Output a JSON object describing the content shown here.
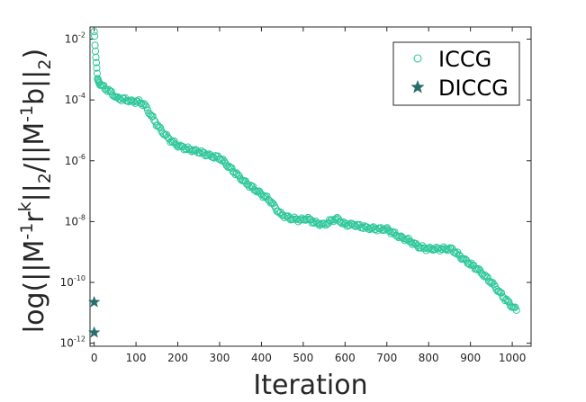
{
  "chart_data": {
    "type": "scatter",
    "xlabel": "Iteration",
    "ylabel": "log(||M⁻¹rᵏ||₂/||M⁻¹b||₂)",
    "ylabel_parts": {
      "pre": "log(||M",
      "sup1": "-1",
      "mid1": "r",
      "sup2": "k",
      "mid2": "||",
      "sub1": "2",
      "mid3": "/||M",
      "sup3": "-1",
      "mid4": "b||",
      "sub2": "2",
      "post": ")"
    },
    "xlim": [
      -10,
      1045
    ],
    "ylim_log10": [
      -12.1,
      -1.6
    ],
    "y_scale": "log",
    "grid": false,
    "legend_position": "top-right",
    "x_ticks": [
      {
        "value": 0,
        "label": "0"
      },
      {
        "value": 100,
        "label": "100"
      },
      {
        "value": 200,
        "label": "200"
      },
      {
        "value": 300,
        "label": "300"
      },
      {
        "value": 400,
        "label": "400"
      },
      {
        "value": 500,
        "label": "500"
      },
      {
        "value": 600,
        "label": "600"
      },
      {
        "value": 700,
        "label": "700"
      },
      {
        "value": 800,
        "label": "800"
      },
      {
        "value": 900,
        "label": "900"
      },
      {
        "value": 1000,
        "label": "1000"
      }
    ],
    "y_ticks": [
      {
        "exponent": -2,
        "base": "10",
        "exp": "-2"
      },
      {
        "exponent": -4,
        "base": "10",
        "exp": "-4"
      },
      {
        "exponent": -6,
        "base": "10",
        "exp": "-6"
      },
      {
        "exponent": -8,
        "base": "10",
        "exp": "-8"
      },
      {
        "exponent": -10,
        "base": "10",
        "exp": "-10"
      },
      {
        "exponent": -12,
        "base": "10",
        "exp": "-12"
      }
    ],
    "series": [
      {
        "name": "ICCG",
        "marker": "circle-open",
        "color": "#2fc79a",
        "x_range": [
          0,
          1010
        ],
        "log10_profile": [
          [
            0,
            -1.75
          ],
          [
            1,
            -1.9
          ],
          [
            2,
            -2.2
          ],
          [
            4,
            -2.6
          ],
          [
            6,
            -2.95
          ],
          [
            8,
            -3.3
          ],
          [
            12,
            -3.45
          ],
          [
            20,
            -3.55
          ],
          [
            40,
            -3.75
          ],
          [
            55,
            -3.95
          ],
          [
            70,
            -3.97
          ],
          [
            90,
            -4.05
          ],
          [
            105,
            -4.05
          ],
          [
            120,
            -4.15
          ],
          [
            140,
            -4.6
          ],
          [
            160,
            -5.0
          ],
          [
            180,
            -5.3
          ],
          [
            200,
            -5.5
          ],
          [
            220,
            -5.6
          ],
          [
            250,
            -5.7
          ],
          [
            280,
            -5.85
          ],
          [
            300,
            -5.9
          ],
          [
            330,
            -6.3
          ],
          [
            360,
            -6.7
          ],
          [
            390,
            -7.0
          ],
          [
            420,
            -7.3
          ],
          [
            445,
            -7.75
          ],
          [
            470,
            -7.9
          ],
          [
            495,
            -7.95
          ],
          [
            510,
            -7.9
          ],
          [
            530,
            -8.05
          ],
          [
            550,
            -8.1
          ],
          [
            570,
            -7.95
          ],
          [
            580,
            -7.9
          ],
          [
            600,
            -8.1
          ],
          [
            620,
            -8.1
          ],
          [
            650,
            -8.2
          ],
          [
            680,
            -8.25
          ],
          [
            700,
            -8.25
          ],
          [
            730,
            -8.5
          ],
          [
            750,
            -8.6
          ],
          [
            780,
            -8.85
          ],
          [
            800,
            -8.9
          ],
          [
            840,
            -8.9
          ],
          [
            855,
            -8.9
          ],
          [
            880,
            -9.2
          ],
          [
            900,
            -9.4
          ],
          [
            920,
            -9.6
          ],
          [
            950,
            -10.0
          ],
          [
            980,
            -10.5
          ],
          [
            1000,
            -10.8
          ],
          [
            1010,
            -10.9
          ]
        ]
      },
      {
        "name": "DICCG",
        "marker": "star-filled",
        "color": "#276e6b",
        "points": [
          {
            "x": 0,
            "log10_y": -10.65
          },
          {
            "x": 0,
            "log10_y": -11.65
          }
        ]
      }
    ]
  }
}
